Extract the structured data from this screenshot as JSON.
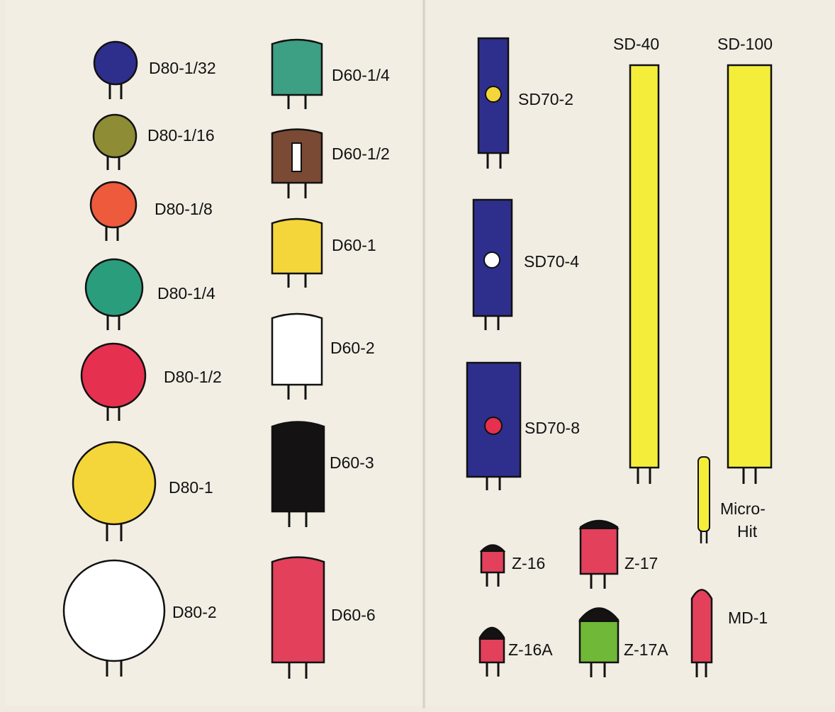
{
  "colors": {
    "paper": "#f2eee4",
    "outline": "#111111",
    "navy": "#2e2f8c",
    "olive": "#8e8c34",
    "orange": "#ee5a3c",
    "teal": "#2a9e7c",
    "red": "#e6304f",
    "yellow": "#f4d63a",
    "white": "#ffffff",
    "sea_green": "#3d9f83",
    "brown": "#7a4a34",
    "black": "#141212",
    "pink": "#e3405b",
    "bright_yellow": "#f4ee3a",
    "green": "#6fb838"
  },
  "d80_series": [
    {
      "label": "D80-1/32",
      "color": "navy"
    },
    {
      "label": "D80-1/16",
      "color": "olive"
    },
    {
      "label": "D80-1/8",
      "color": "orange"
    },
    {
      "label": "D80-1/4",
      "color": "teal"
    },
    {
      "label": "D80-1/2",
      "color": "red"
    },
    {
      "label": "D80-1",
      "color": "yellow"
    },
    {
      "label": "D80-2",
      "color": "white"
    }
  ],
  "d60_series": [
    {
      "label": "D60-1/4",
      "color": "sea_green"
    },
    {
      "label": "D60-1/2",
      "color": "brown"
    },
    {
      "label": "D60-1",
      "color": "yellow"
    },
    {
      "label": "D60-2",
      "color": "white"
    },
    {
      "label": "D60-3",
      "color": "black"
    },
    {
      "label": "D60-6",
      "color": "pink"
    }
  ],
  "sd70_series": [
    {
      "label": "SD70-2",
      "color": "navy",
      "dot": "yellow"
    },
    {
      "label": "SD70-4",
      "color": "navy",
      "dot": "white"
    },
    {
      "label": "SD70-8",
      "color": "navy",
      "dot": "red"
    }
  ],
  "sd_tall": [
    {
      "label": "SD-40",
      "color": "bright_yellow"
    },
    {
      "label": "SD-100",
      "color": "bright_yellow"
    }
  ],
  "micro_hit": {
    "label_line1": "Micro-",
    "label_line2": "Hit",
    "color": "bright_yellow"
  },
  "z_series": [
    {
      "label": "Z-16",
      "color": "pink",
      "cap": "black"
    },
    {
      "label": "Z-17",
      "color": "pink",
      "cap": "black"
    },
    {
      "label": "Z-16A",
      "color": "pink",
      "cap": "black"
    },
    {
      "label": "Z-17A",
      "color": "green",
      "cap": "black"
    }
  ],
  "md": {
    "label": "MD-1",
    "color": "pink"
  }
}
